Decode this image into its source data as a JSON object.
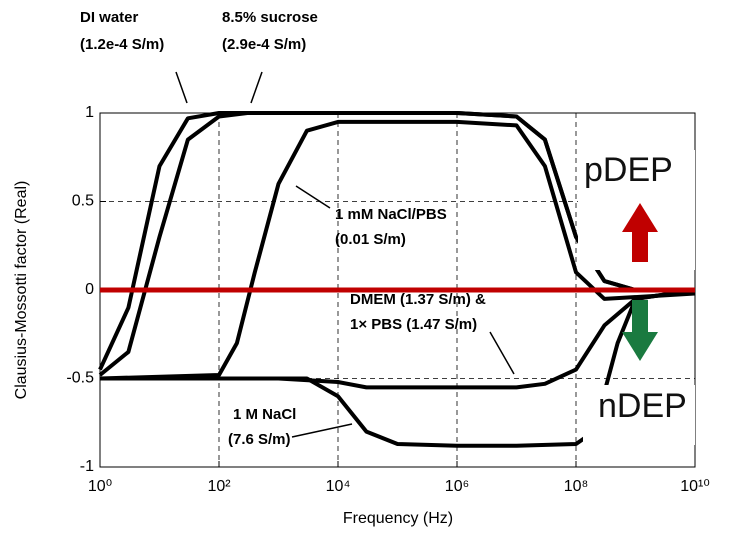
{
  "chart_data": {
    "type": "line",
    "x_label": "Frequency (Hz)",
    "y_label": "Clausius-Mossotti factor (Real)",
    "xscale": "log",
    "xlim": [
      1,
      10000000000
    ],
    "xticks": [
      {
        "value": 1,
        "label": "10⁰"
      },
      {
        "value": 100,
        "label": "10²"
      },
      {
        "value": 10000,
        "label": "10⁴"
      },
      {
        "value": 1000000,
        "label": "10⁶"
      },
      {
        "value": 100000000,
        "label": "10⁸"
      },
      {
        "value": 10000000000,
        "label": "10¹⁰"
      }
    ],
    "ylim": [
      -1,
      1
    ],
    "yticks": [
      -1,
      -0.5,
      0,
      0.5,
      1
    ],
    "grid": true,
    "series": [
      {
        "color": "#000000",
        "x": [
          1,
          3,
          10,
          30,
          100,
          10000,
          1000000,
          10000000,
          30000000,
          100000000,
          300000000,
          1000000000,
          10000000000
        ],
        "values": [
          -0.45,
          -0.1,
          0.7,
          0.97,
          1,
          1,
          1,
          0.98,
          0.85,
          0.3,
          0.05,
          0,
          0
        ]
      },
      {
        "color": "#000000",
        "x": [
          1,
          3,
          10,
          30,
          100,
          300,
          10000,
          1000000,
          10000000,
          30000000,
          100000000,
          300000000,
          1000000000,
          10000000000
        ],
        "values": [
          -0.48,
          -0.35,
          0.3,
          0.85,
          0.98,
          1,
          1,
          1,
          0.98,
          0.85,
          0.3,
          0.05,
          0,
          0
        ]
      },
      {
        "color": "#000000",
        "x": [
          1,
          100,
          200,
          400,
          1000,
          3000,
          10000,
          1000000,
          10000000,
          30000000,
          100000000,
          300000000,
          10000000000
        ],
        "values": [
          -0.5,
          -0.48,
          -0.3,
          0.1,
          0.6,
          0.9,
          0.95,
          0.95,
          0.93,
          0.7,
          0.1,
          -0.05,
          -0.02
        ]
      },
      {
        "color": "#000000",
        "x": [
          1,
          1000,
          10000,
          30000,
          1000000,
          10000000,
          30000000,
          100000000,
          300000000,
          1000000000,
          10000000000
        ],
        "values": [
          -0.5,
          -0.5,
          -0.52,
          -0.55,
          -0.55,
          -0.55,
          -0.53,
          -0.45,
          -0.2,
          -0.05,
          0
        ]
      },
      {
        "color": "#000000",
        "x": [
          1,
          3000,
          10000,
          30000,
          100000,
          1000000,
          10000000,
          100000000,
          200000000,
          500000000,
          1000000000,
          10000000000
        ],
        "values": [
          -0.5,
          -0.5,
          -0.6,
          -0.8,
          -0.87,
          -0.88,
          -0.88,
          -0.87,
          -0.8,
          -0.3,
          -0.05,
          0
        ]
      }
    ],
    "reference_line": {
      "value": 0,
      "color": "#c00000"
    },
    "annotations": [
      {
        "lines": [
          "DI water",
          "(1.2e-4 S/m)"
        ]
      },
      {
        "lines": [
          "8.5% sucrose",
          "(2.9e-4 S/m)"
        ]
      },
      {
        "lines": [
          "1 mM NaCl/PBS",
          "(0.01 S/m)"
        ]
      },
      {
        "lines": [
          "DMEM (1.37 S/m) &",
          "1× PBS (1.47 S/m)"
        ]
      },
      {
        "lines": [
          "1 M NaCl",
          "(7.6 S/m)"
        ]
      },
      {
        "lines": [
          "pDEP"
        ]
      },
      {
        "lines": [
          "nDEP"
        ]
      }
    ]
  }
}
